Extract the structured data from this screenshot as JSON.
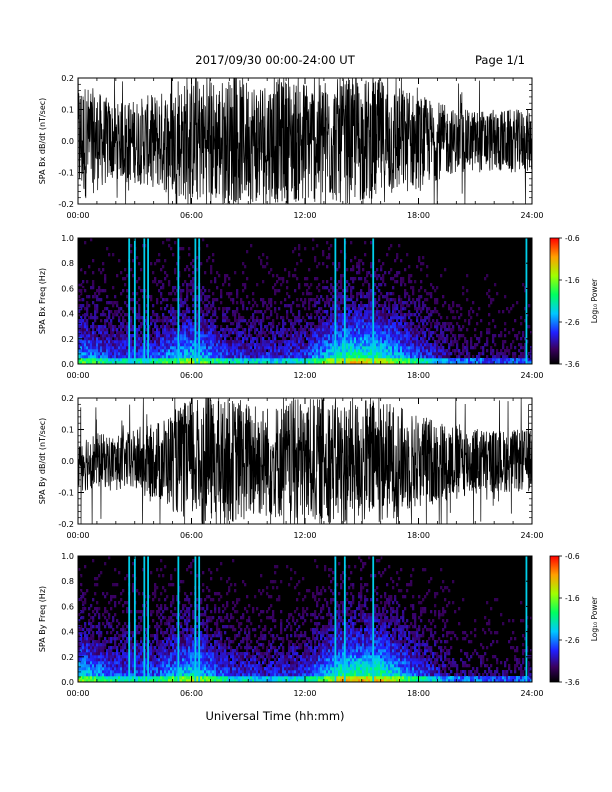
{
  "header": {
    "title": "2017/09/30  00:00-24:00 UT",
    "page": "Page 1/1"
  },
  "xaxis": {
    "label": "Universal Time (hh:mm)",
    "range_hours": [
      0,
      24
    ],
    "ticks": [
      "00:00",
      "06:00",
      "12:00",
      "18:00",
      "24:00"
    ]
  },
  "colorbar": {
    "label": "Log₁₀ Power",
    "ticks": [
      "-0.6",
      "-1.6",
      "-2.6",
      "-3.6"
    ],
    "range": [
      -3.6,
      -0.6
    ]
  },
  "chart_data": [
    {
      "type": "line",
      "ylabel": "SPA Bx dB/dt (nT/sec)",
      "ylim": [
        -0.2,
        0.2
      ],
      "yticks": [
        "-0.2",
        "-0.1",
        "0.0",
        "0.1",
        "0.2"
      ],
      "envelope_hours": [
        0,
        2,
        4,
        6,
        8,
        10,
        12,
        14,
        16,
        18,
        20,
        22,
        24
      ],
      "envelope_amplitude": [
        0.2,
        0.12,
        0.15,
        0.2,
        0.2,
        0.2,
        0.2,
        0.2,
        0.2,
        0.15,
        0.1,
        0.1,
        0.1
      ]
    },
    {
      "type": "heatmap",
      "ylabel": "SPA Bx Freq (Hz)",
      "ylim": [
        0,
        1.0
      ],
      "yticks": [
        "0.0",
        "0.2",
        "0.4",
        "0.6",
        "0.8",
        "1.0"
      ],
      "activity_hours": [
        0,
        2,
        4,
        6,
        8,
        10,
        12,
        14,
        16,
        18,
        20,
        22,
        24
      ],
      "activity_level": [
        0.6,
        0.4,
        0.45,
        0.7,
        0.4,
        0.35,
        0.4,
        0.85,
        0.8,
        0.45,
        0.2,
        0.15,
        0.15
      ],
      "vertical_lines_hours": [
        2.7,
        3.0,
        3.5,
        3.7,
        5.3,
        6.2,
        6.4,
        13.6,
        14.1,
        15.6,
        23.7
      ]
    },
    {
      "type": "line",
      "ylabel": "SPA By dB/dt (nT/sec)",
      "ylim": [
        -0.2,
        0.2
      ],
      "yticks": [
        "-0.2",
        "-0.1",
        "0.0",
        "0.1",
        "0.2"
      ],
      "envelope_hours": [
        0,
        2,
        4,
        6,
        8,
        10,
        12,
        14,
        16,
        18,
        20,
        22,
        24
      ],
      "envelope_amplitude": [
        0.1,
        0.08,
        0.12,
        0.2,
        0.2,
        0.18,
        0.2,
        0.2,
        0.2,
        0.15,
        0.12,
        0.1,
        0.1
      ]
    },
    {
      "type": "heatmap",
      "ylabel": "SPA By Freq (Hz)",
      "ylim": [
        0,
        1.0
      ],
      "yticks": [
        "0.0",
        "0.2",
        "0.4",
        "0.6",
        "0.8",
        "1.0"
      ],
      "activity_hours": [
        0,
        2,
        4,
        6,
        8,
        10,
        12,
        14,
        16,
        18,
        20,
        22,
        24
      ],
      "activity_level": [
        0.7,
        0.45,
        0.45,
        0.75,
        0.4,
        0.35,
        0.4,
        0.85,
        0.85,
        0.45,
        0.2,
        0.15,
        0.15
      ],
      "vertical_lines_hours": [
        2.7,
        3.0,
        3.5,
        3.7,
        5.3,
        6.2,
        6.4,
        13.6,
        14.1,
        15.6,
        23.7
      ]
    }
  ]
}
